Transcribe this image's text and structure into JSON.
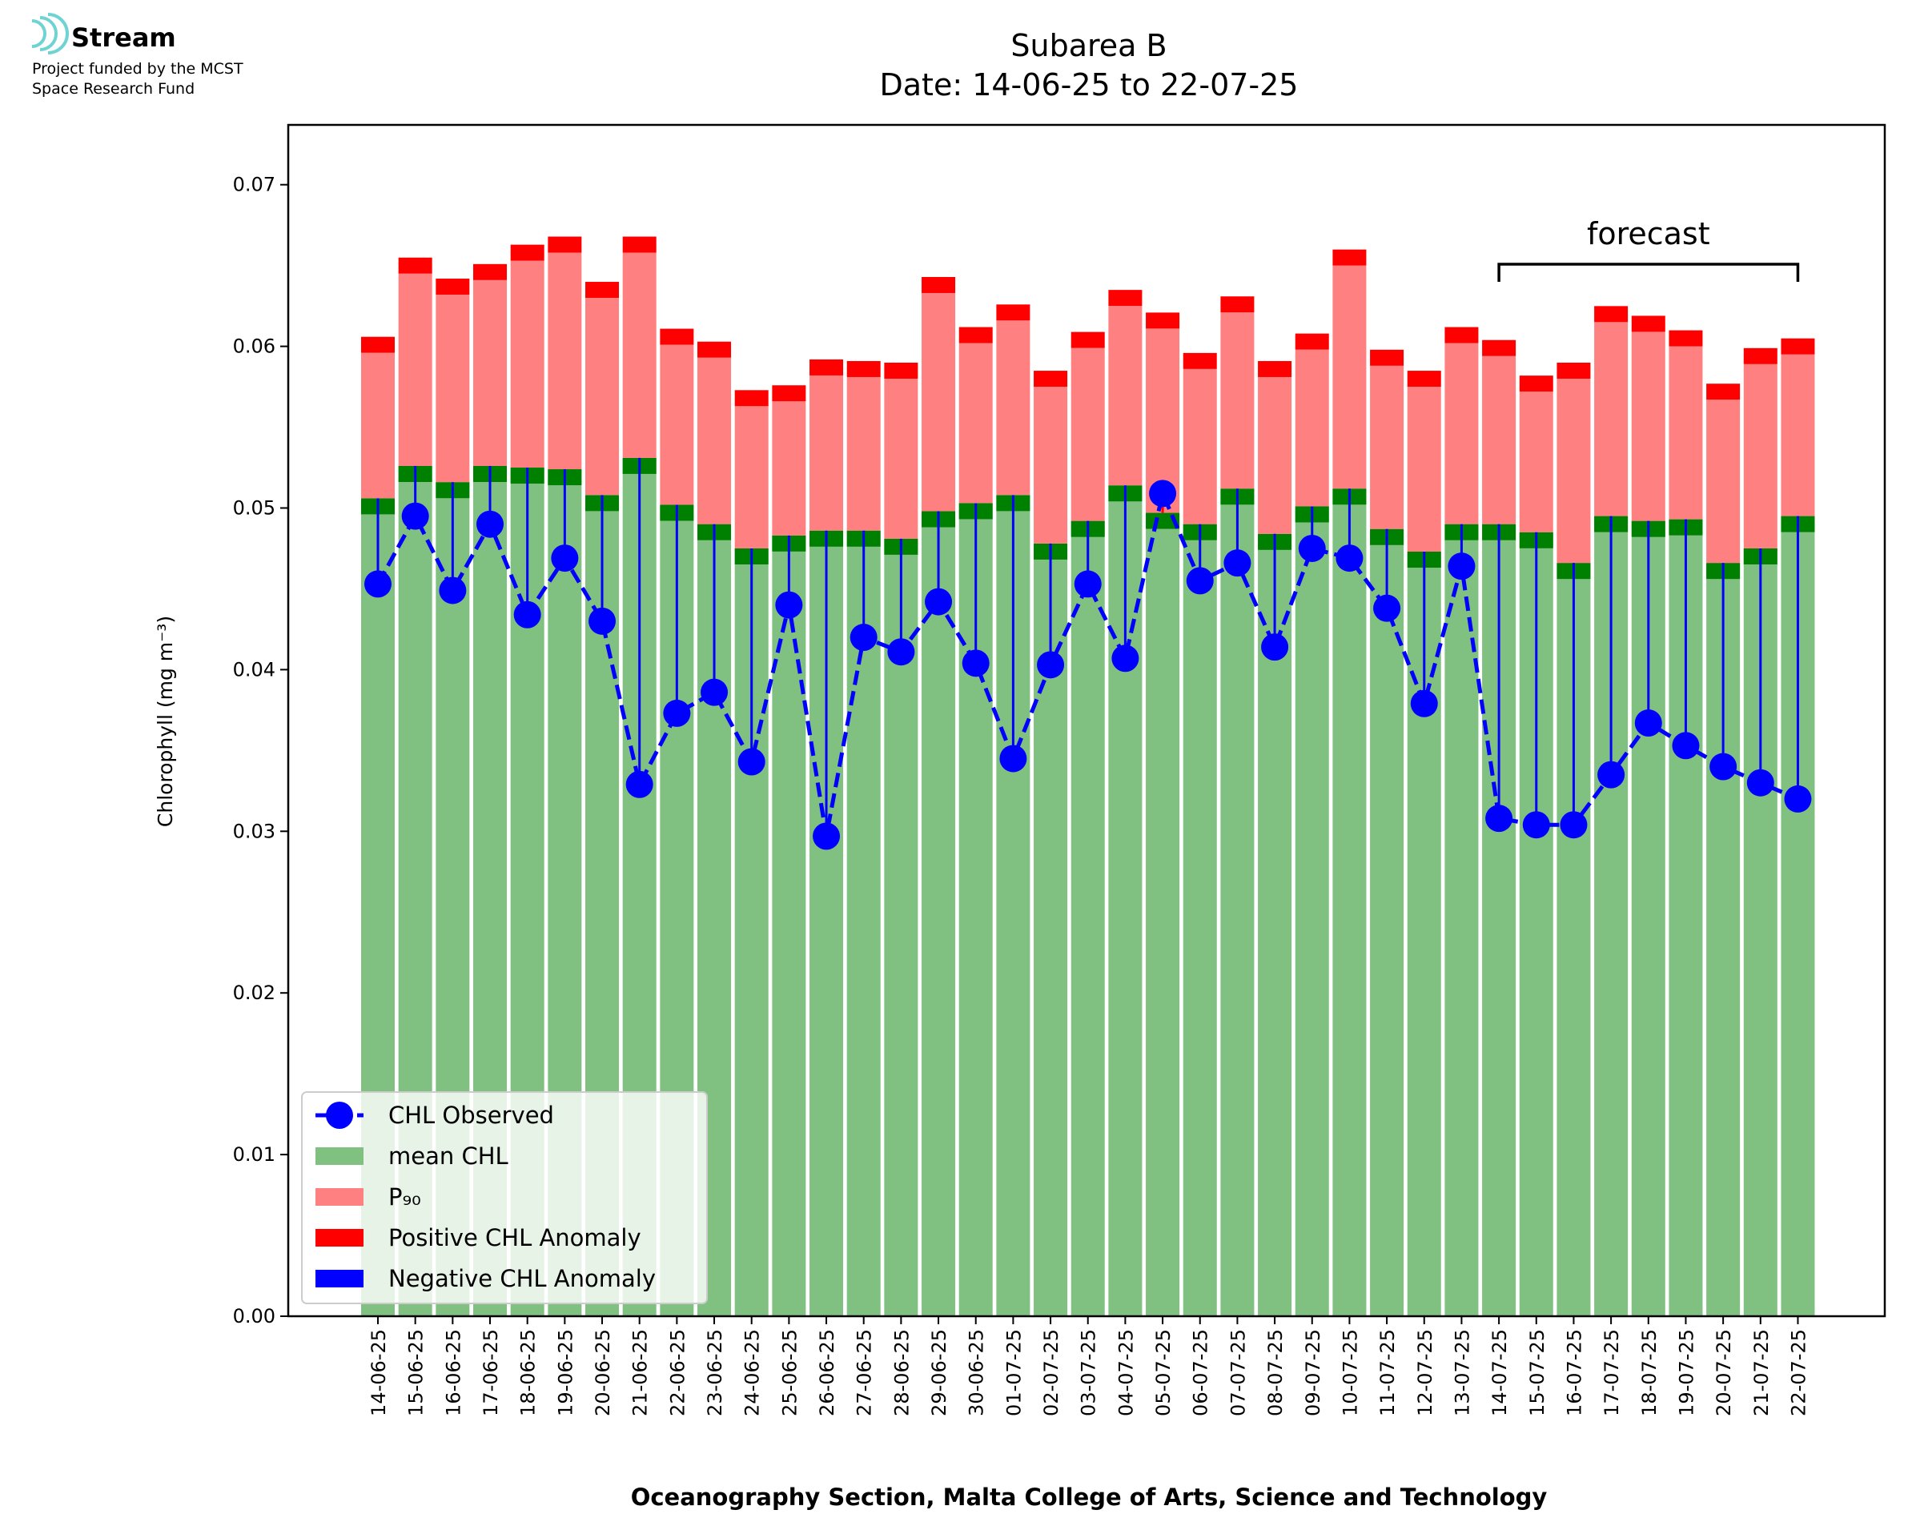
{
  "logo": {
    "name": "Stream",
    "lines": [
      "Project funded by the MCST",
      "Space Research Fund"
    ]
  },
  "chart_data": {
    "type": "bar",
    "title": [
      "Subarea B",
      "Date: 14-06-25 to 22-07-25"
    ],
    "xlabel": "Oceanography Section, Malta College of Arts, Science and Technology",
    "ylabel": "Chlorophyll (mg m⁻³)",
    "annotation": "forecast",
    "categories": [
      "14-06-25",
      "15-06-25",
      "16-06-25",
      "17-06-25",
      "18-06-25",
      "19-06-25",
      "20-06-25",
      "21-06-25",
      "22-06-25",
      "23-06-25",
      "24-06-25",
      "25-06-25",
      "26-06-25",
      "27-06-25",
      "28-06-25",
      "29-06-25",
      "30-06-25",
      "01-07-25",
      "02-07-25",
      "03-07-25",
      "04-07-25",
      "05-07-25",
      "06-07-25",
      "07-07-25",
      "08-07-25",
      "09-07-25",
      "10-07-25",
      "11-07-25",
      "12-07-25",
      "13-07-25",
      "14-07-25",
      "15-07-25",
      "16-07-25",
      "17-07-25",
      "18-07-25",
      "19-07-25",
      "20-07-25",
      "21-07-25",
      "22-07-25"
    ],
    "series": [
      {
        "name": "CHL Observed",
        "color": "#0000ff",
        "values": [
          0.0453,
          0.0495,
          0.0449,
          0.049,
          0.0434,
          0.0469,
          0.043,
          0.0329,
          0.0373,
          0.0386,
          0.0343,
          0.044,
          0.0297,
          0.042,
          0.0411,
          0.0442,
          0.0404,
          0.0345,
          0.0403,
          0.0453,
          0.0407,
          0.0509,
          0.0455,
          0.0466,
          0.0414,
          0.0475,
          0.0469,
          0.0438,
          0.0379,
          0.0464,
          0.0308,
          0.0304,
          0.0304,
          0.0335,
          0.0367,
          0.0353,
          0.034,
          0.033,
          0.032
        ]
      },
      {
        "name": "mean CHL",
        "color": "#80c080",
        "values": [
          0.0506,
          0.0526,
          0.0516,
          0.0526,
          0.0525,
          0.0524,
          0.0508,
          0.0531,
          0.0502,
          0.049,
          0.0475,
          0.0483,
          0.0486,
          0.0486,
          0.0481,
          0.0498,
          0.0503,
          0.0508,
          0.0478,
          0.0492,
          0.0514,
          0.0497,
          0.049,
          0.0512,
          0.0484,
          0.0501,
          0.0512,
          0.0487,
          0.0473,
          0.049,
          0.049,
          0.0485,
          0.0466,
          0.0495,
          0.0492,
          0.0493,
          0.0466,
          0.0475,
          0.0495
        ]
      },
      {
        "name": "P₉₀",
        "color": "#ff8080",
        "values": [
          0.0596,
          0.0645,
          0.0632,
          0.0641,
          0.0653,
          0.0658,
          0.063,
          0.0658,
          0.0601,
          0.0593,
          0.0563,
          0.0566,
          0.0582,
          0.0581,
          0.058,
          0.0633,
          0.0602,
          0.0616,
          0.0575,
          0.0599,
          0.0625,
          0.0611,
          0.0586,
          0.0621,
          0.0581,
          0.0598,
          0.065,
          0.0588,
          0.0575,
          0.0602,
          0.0594,
          0.0572,
          0.058,
          0.0615,
          0.0609,
          0.06,
          0.0567,
          0.0589,
          0.0595
        ]
      }
    ],
    "legend_extra": [
      {
        "name": "Positive CHL Anomaly",
        "color": "#ff0000"
      },
      {
        "name": "Negative CHL Anomaly",
        "color": "#0000ff"
      }
    ],
    "mean_marker_color": "#008000",
    "ylim": [
      0,
      0.0737
    ],
    "yticks": [
      {
        "value": 0,
        "label": "0.00"
      },
      0.01,
      0.02,
      0.03,
      0.04,
      0.05,
      0.06,
      0.07
    ],
    "legend": "lower left",
    "grid": false
  }
}
